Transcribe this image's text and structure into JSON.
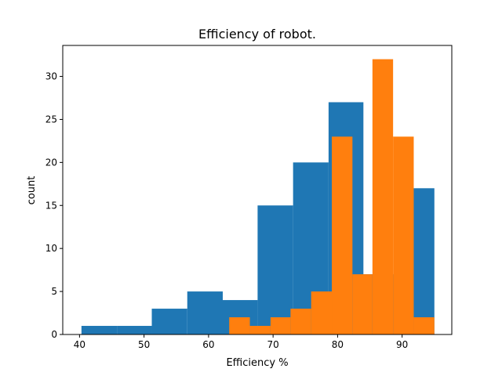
{
  "chart_data": {
    "type": "bar",
    "title": "Efficiency of robot.",
    "xlabel": "Efficiency %",
    "ylabel": "count",
    "xlim": [
      37.4,
      97.7
    ],
    "ylim": [
      0,
      33.6
    ],
    "xticks": [
      40,
      50,
      60,
      70,
      80,
      90
    ],
    "yticks": [
      0,
      5,
      10,
      15,
      20,
      25,
      30
    ],
    "grid": false,
    "series": [
      {
        "color": "#1f77b4",
        "bins": [
          {
            "x0": 40.3,
            "x1": 45.8,
            "count": 1
          },
          {
            "x0": 45.8,
            "x1": 51.2,
            "count": 1
          },
          {
            "x0": 51.2,
            "x1": 56.7,
            "count": 3
          },
          {
            "x0": 56.7,
            "x1": 62.2,
            "count": 5
          },
          {
            "x0": 62.2,
            "x1": 67.6,
            "count": 4
          },
          {
            "x0": 67.6,
            "x1": 73.1,
            "count": 15
          },
          {
            "x0": 73.1,
            "x1": 78.6,
            "count": 20
          },
          {
            "x0": 78.6,
            "x1": 84.0,
            "count": 27
          },
          {
            "x0": 84.0,
            "x1": 89.5,
            "count": 7
          },
          {
            "x0": 89.5,
            "x1": 95.0,
            "count": 17
          }
        ]
      },
      {
        "color": "#ff7f0e",
        "bins": [
          {
            "x0": 63.2,
            "x1": 66.4,
            "count": 2
          },
          {
            "x0": 66.4,
            "x1": 69.6,
            "count": 1
          },
          {
            "x0": 69.6,
            "x1": 72.7,
            "count": 2
          },
          {
            "x0": 72.7,
            "x1": 75.9,
            "count": 3
          },
          {
            "x0": 75.9,
            "x1": 79.1,
            "count": 5
          },
          {
            "x0": 79.1,
            "x1": 82.3,
            "count": 23
          },
          {
            "x0": 82.3,
            "x1": 85.4,
            "count": 7
          },
          {
            "x0": 85.4,
            "x1": 88.6,
            "count": 32
          },
          {
            "x0": 88.6,
            "x1": 91.8,
            "count": 23
          },
          {
            "x0": 91.8,
            "x1": 95.0,
            "count": 2
          }
        ]
      }
    ]
  }
}
